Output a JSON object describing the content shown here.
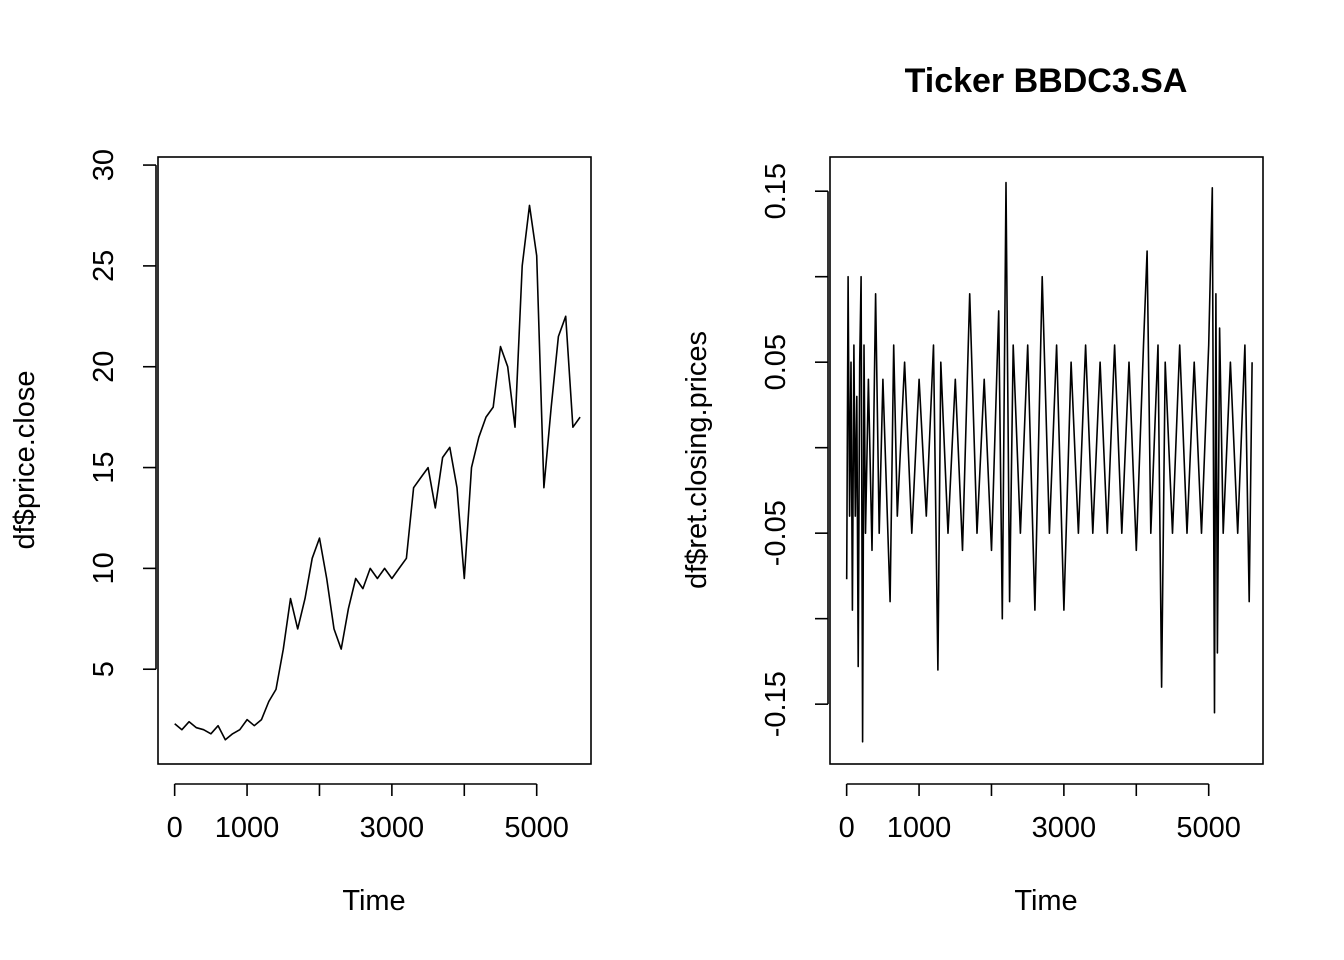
{
  "chart_data": [
    {
      "type": "line",
      "title": "",
      "xlabel": "Time",
      "ylabel": "df$price.close",
      "xlim": [
        -230,
        5750
      ],
      "ylim": [
        0.3,
        30.4
      ],
      "xticks": [
        0,
        1000,
        2000,
        3000,
        4000,
        5000
      ],
      "xtick_labels": [
        "0",
        "1000",
        "",
        "3000",
        "",
        "5000"
      ],
      "yticks": [
        5,
        10,
        15,
        20,
        25,
        30
      ],
      "ytick_labels": [
        "5",
        "10",
        "15",
        "20",
        "25",
        "30"
      ],
      "grid": false,
      "legend": "none",
      "series": [
        {
          "x": [
            0,
            100,
            200,
            300,
            400,
            500,
            600,
            700,
            800,
            900,
            1000,
            1100,
            1200,
            1300,
            1400,
            1500,
            1600,
            1700,
            1800,
            1900,
            2000,
            2100,
            2200,
            2300,
            2400,
            2500,
            2600,
            2700,
            2800,
            2900,
            3000,
            3100,
            3200,
            3300,
            3400,
            3500,
            3600,
            3700,
            3800,
            3900,
            4000,
            4100,
            4200,
            4300,
            4400,
            4500,
            4600,
            4700,
            4800,
            4900,
            5000,
            5100,
            5200,
            5300,
            5400,
            5500,
            5600
          ],
          "values": [
            2.3,
            2.0,
            2.4,
            2.1,
            2.0,
            1.8,
            2.2,
            1.5,
            1.8,
            2.0,
            2.5,
            2.2,
            2.5,
            3.4,
            4.0,
            6.0,
            8.5,
            7.0,
            8.5,
            10.5,
            11.5,
            9.5,
            7.0,
            6.0,
            8.0,
            9.5,
            9.0,
            10.0,
            9.5,
            10.0,
            9.5,
            10.0,
            10.5,
            14.0,
            14.5,
            15.0,
            13.0,
            15.5,
            16.0,
            14.0,
            9.5,
            15.0,
            16.5,
            17.5,
            18.0,
            21.0,
            20.0,
            17.0,
            25.0,
            28.0,
            25.5,
            14.0,
            18.0,
            21.5,
            22.5,
            17.0,
            17.5
          ]
        }
      ]
    },
    {
      "type": "line",
      "title": "Ticker BBDC3.SA",
      "xlabel": "Time",
      "ylabel": "df$ret.closing.prices",
      "xlim": [
        -230,
        5750
      ],
      "ylim": [
        -0.185,
        0.17
      ],
      "xticks": [
        0,
        1000,
        2000,
        3000,
        4000,
        5000
      ],
      "xtick_labels": [
        "0",
        "1000",
        "",
        "3000",
        "",
        "5000"
      ],
      "yticks": [
        -0.15,
        -0.1,
        -0.05,
        0,
        0.05,
        0.1,
        0.15
      ],
      "ytick_labels": [
        "-0.15",
        "",
        "-0.05",
        "",
        "0.05",
        "",
        "0.15"
      ],
      "grid": false,
      "legend": "none",
      "series": [
        {
          "x": [
            0,
            20,
            40,
            60,
            80,
            100,
            120,
            140,
            160,
            180,
            200,
            220,
            240,
            260,
            300,
            350,
            400,
            450,
            500,
            600,
            650,
            700,
            800,
            900,
            1000,
            1100,
            1200,
            1260,
            1300,
            1400,
            1500,
            1600,
            1700,
            1800,
            1900,
            2000,
            2100,
            2150,
            2200,
            2250,
            2300,
            2400,
            2500,
            2600,
            2700,
            2800,
            2900,
            3000,
            3100,
            3200,
            3300,
            3400,
            3500,
            3600,
            3700,
            3800,
            3900,
            4000,
            4100,
            4150,
            4200,
            4300,
            4350,
            4400,
            4500,
            4600,
            4700,
            4800,
            4900,
            5000,
            5050,
            5080,
            5100,
            5120,
            5150,
            5200,
            5300,
            5400,
            5500,
            5560,
            5600
          ],
          "values": [
            -0.077,
            0.1,
            -0.04,
            0.05,
            -0.095,
            0.06,
            -0.04,
            0.03,
            -0.128,
            0.05,
            0.1,
            -0.172,
            0.06,
            -0.05,
            0.04,
            -0.06,
            0.09,
            -0.05,
            0.04,
            -0.09,
            0.06,
            -0.04,
            0.05,
            -0.05,
            0.04,
            -0.04,
            0.06,
            -0.13,
            0.05,
            -0.05,
            0.04,
            -0.06,
            0.09,
            -0.05,
            0.04,
            -0.06,
            0.08,
            -0.1,
            0.155,
            -0.09,
            0.06,
            -0.05,
            0.06,
            -0.095,
            0.1,
            -0.05,
            0.06,
            -0.095,
            0.05,
            -0.05,
            0.06,
            -0.05,
            0.05,
            -0.05,
            0.06,
            -0.05,
            0.05,
            -0.06,
            0.06,
            0.115,
            -0.05,
            0.06,
            -0.14,
            0.05,
            -0.05,
            0.06,
            -0.05,
            0.05,
            -0.05,
            0.06,
            0.152,
            -0.155,
            0.09,
            -0.12,
            0.07,
            -0.05,
            0.05,
            -0.05,
            0.06,
            -0.09,
            0.05
          ]
        }
      ]
    }
  ]
}
